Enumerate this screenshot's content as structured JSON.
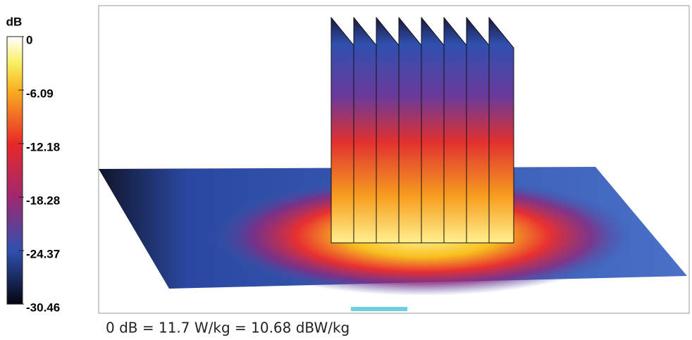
{
  "colorbar": {
    "title": "dB",
    "range": [
      -30.46,
      0
    ],
    "ticks": [
      0,
      -6.09,
      -12.18,
      -18.28,
      -24.37,
      -30.46
    ]
  },
  "caption": "0 dB = 11.7 W/kg = 10.68 dBW/kg"
}
